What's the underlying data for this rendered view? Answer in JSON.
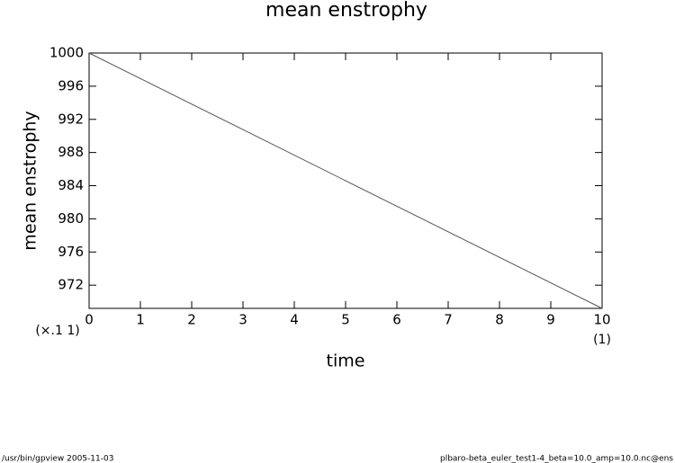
{
  "chart_data": {
    "type": "line",
    "title": "mean enstrophy",
    "xlabel": "time",
    "ylabel": "mean enstrophy",
    "x_unit_label": "(×.1 1)",
    "x_end_unit_label": "(1)",
    "x": [
      0,
      10
    ],
    "series": [
      {
        "name": "mean enstrophy",
        "color": "#555555",
        "values": [
          1000,
          969.2
        ]
      }
    ],
    "xlim": [
      0,
      10
    ],
    "xticks": [
      0,
      1,
      2,
      3,
      4,
      5,
      6,
      7,
      8,
      9,
      10
    ],
    "ylim": [
      969.2,
      1000
    ],
    "yticks": [
      972,
      976,
      980,
      984,
      988,
      992,
      996,
      1000
    ],
    "footer_left": "/usr/bin/gpview   2005-11-03",
    "footer_right": "plbaro-beta_euler_test1-4_beta=10.0_amp=10.0.nc@ens"
  }
}
